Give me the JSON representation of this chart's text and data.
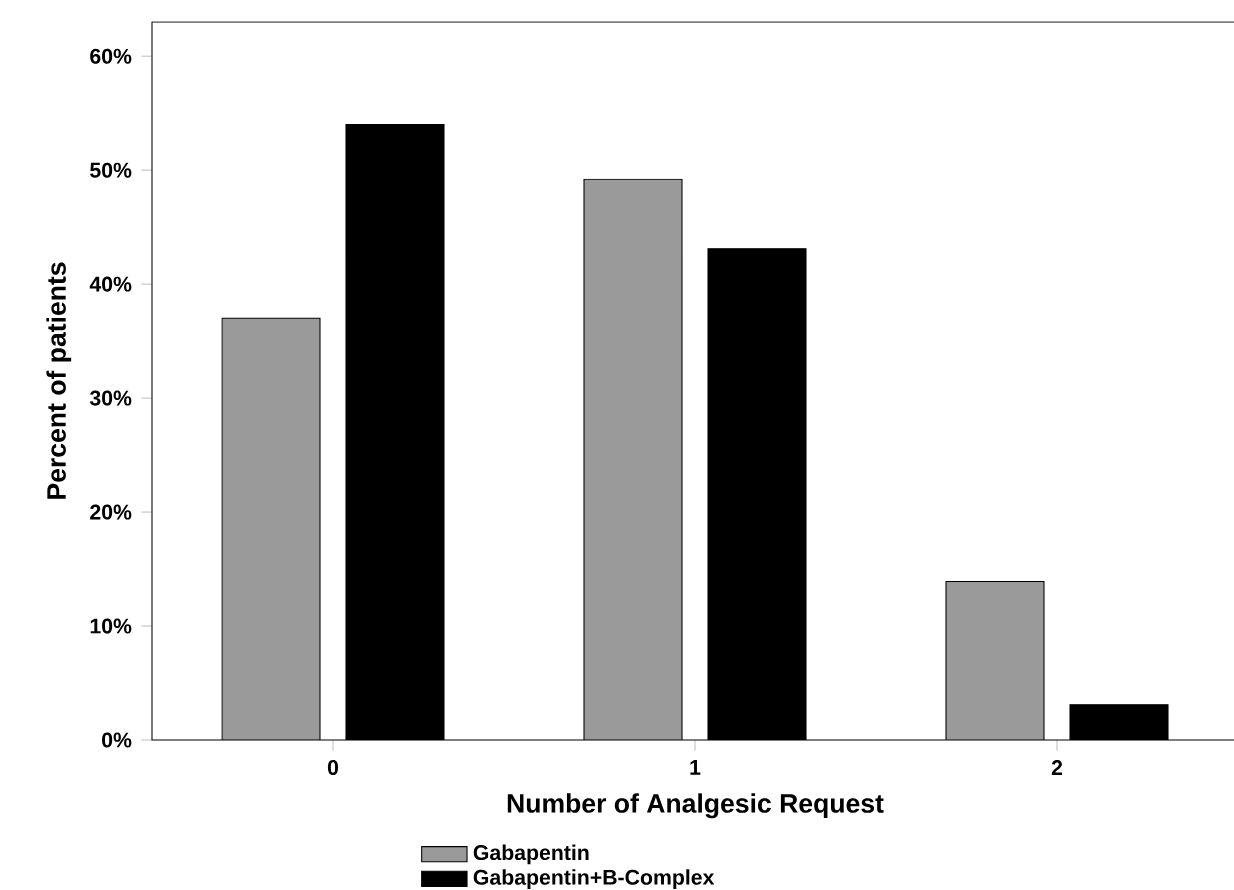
{
  "chart_data": {
    "type": "bar",
    "xlabel": "Number of Analgesic Request",
    "ylabel": "Percent of patients",
    "categories": [
      "0",
      "1",
      "2"
    ],
    "series": [
      {
        "name": "Gabapentin",
        "color": "#9a9a9a",
        "values": [
          37,
          49.2,
          13.9
        ]
      },
      {
        "name": "Gabapentin+B-Complex",
        "color": "#000000",
        "values": [
          54,
          43.1,
          3.1
        ]
      }
    ],
    "ylim": [
      0,
      63
    ],
    "yticks": [
      {
        "value": 0,
        "label": "0%"
      },
      {
        "value": 10,
        "label": "10%"
      },
      {
        "value": 20,
        "label": "20%"
      },
      {
        "value": 30,
        "label": "30%"
      },
      {
        "value": 40,
        "label": "40%"
      },
      {
        "value": 50,
        "label": "50%"
      },
      {
        "value": 60,
        "label": "60%"
      }
    ],
    "grid": false,
    "legend": "bottom"
  }
}
